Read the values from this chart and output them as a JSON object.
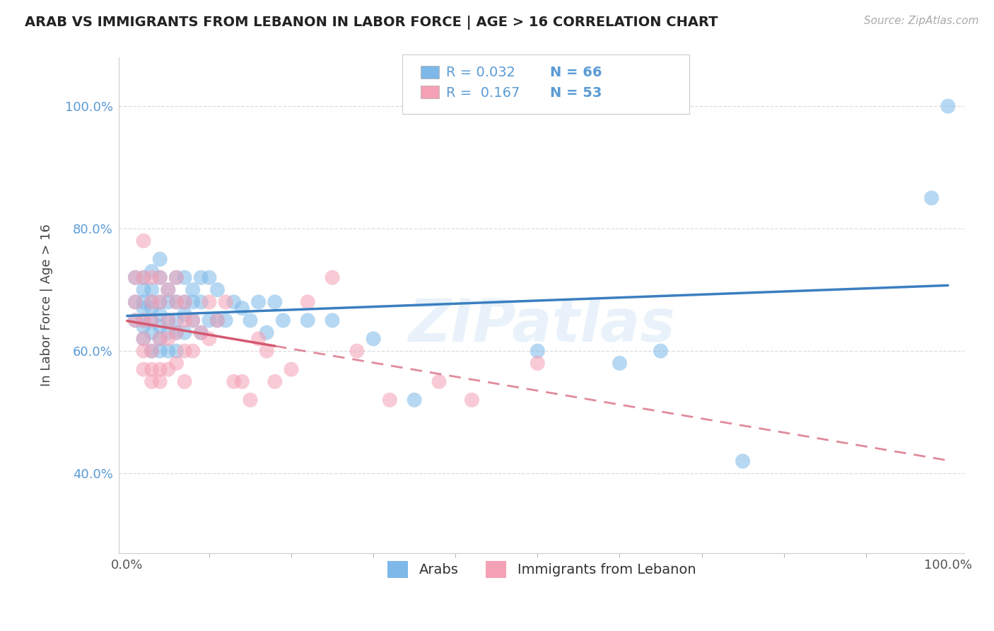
{
  "title": "ARAB VS IMMIGRANTS FROM LEBANON IN LABOR FORCE | AGE > 16 CORRELATION CHART",
  "source": "Source: ZipAtlas.com",
  "ylabel": "In Labor Force | Age > 16",
  "xlim": [
    -0.01,
    1.02
  ],
  "ylim": [
    0.27,
    1.08
  ],
  "xtick_positions": [
    0.0,
    1.0
  ],
  "xticklabels": [
    "0.0%",
    "100.0%"
  ],
  "ytick_positions": [
    0.4,
    0.6,
    0.8,
    1.0
  ],
  "yticklabels": [
    "40.0%",
    "60.0%",
    "80.0%",
    "100.0%"
  ],
  "R1": "0.032",
  "N1": "66",
  "R2": "0.167",
  "N2": "53",
  "watermark": "ZIPatlas",
  "blue_scatter": "#7db8e8",
  "pink_scatter": "#f4a0b5",
  "trend_blue": "#3a7fc1",
  "trend_pink": "#d45870",
  "grid_color": "#dddddd",
  "title_color": "#222222",
  "axis_label_color": "#5b9bd5",
  "source_color": "#aaaaaa",
  "arab_x": [
    0.01,
    0.01,
    0.01,
    0.02,
    0.02,
    0.02,
    0.02,
    0.02,
    0.02,
    0.02,
    0.03,
    0.03,
    0.03,
    0.03,
    0.03,
    0.03,
    0.03,
    0.04,
    0.04,
    0.04,
    0.04,
    0.04,
    0.04,
    0.04,
    0.05,
    0.05,
    0.05,
    0.05,
    0.05,
    0.06,
    0.06,
    0.06,
    0.06,
    0.06,
    0.07,
    0.07,
    0.07,
    0.07,
    0.08,
    0.08,
    0.08,
    0.09,
    0.09,
    0.09,
    0.1,
    0.1,
    0.11,
    0.11,
    0.12,
    0.13,
    0.14,
    0.15,
    0.16,
    0.17,
    0.18,
    0.19,
    0.22,
    0.25,
    0.3,
    0.35,
    0.5,
    0.6,
    0.65,
    0.75,
    0.98,
    1.0
  ],
  "arab_y": [
    0.68,
    0.65,
    0.72,
    0.72,
    0.68,
    0.65,
    0.62,
    0.7,
    0.67,
    0.64,
    0.73,
    0.7,
    0.68,
    0.65,
    0.63,
    0.6,
    0.67,
    0.75,
    0.72,
    0.68,
    0.66,
    0.64,
    0.6,
    0.62,
    0.7,
    0.68,
    0.65,
    0.63,
    0.6,
    0.72,
    0.68,
    0.65,
    0.63,
    0.6,
    0.72,
    0.68,
    0.66,
    0.63,
    0.7,
    0.68,
    0.65,
    0.72,
    0.68,
    0.63,
    0.72,
    0.65,
    0.7,
    0.65,
    0.65,
    0.68,
    0.67,
    0.65,
    0.68,
    0.63,
    0.68,
    0.65,
    0.65,
    0.65,
    0.62,
    0.52,
    0.6,
    0.58,
    0.6,
    0.42,
    0.85,
    1.0
  ],
  "leb_x": [
    0.01,
    0.01,
    0.01,
    0.02,
    0.02,
    0.02,
    0.02,
    0.02,
    0.02,
    0.03,
    0.03,
    0.03,
    0.03,
    0.03,
    0.03,
    0.04,
    0.04,
    0.04,
    0.04,
    0.04,
    0.05,
    0.05,
    0.05,
    0.05,
    0.06,
    0.06,
    0.06,
    0.06,
    0.07,
    0.07,
    0.07,
    0.07,
    0.08,
    0.08,
    0.09,
    0.1,
    0.1,
    0.11,
    0.12,
    0.13,
    0.14,
    0.15,
    0.16,
    0.17,
    0.18,
    0.2,
    0.22,
    0.25,
    0.28,
    0.32,
    0.38,
    0.42,
    0.5
  ],
  "leb_y": [
    0.68,
    0.65,
    0.72,
    0.78,
    0.72,
    0.65,
    0.6,
    0.57,
    0.62,
    0.72,
    0.68,
    0.65,
    0.6,
    0.57,
    0.55,
    0.72,
    0.68,
    0.62,
    0.57,
    0.55,
    0.7,
    0.65,
    0.62,
    0.57,
    0.72,
    0.68,
    0.63,
    0.58,
    0.68,
    0.65,
    0.6,
    0.55,
    0.65,
    0.6,
    0.63,
    0.68,
    0.62,
    0.65,
    0.68,
    0.55,
    0.55,
    0.52,
    0.62,
    0.6,
    0.55,
    0.57,
    0.68,
    0.72,
    0.6,
    0.52,
    0.55,
    0.52,
    0.58
  ],
  "trend_blue_x0": 0.0,
  "trend_blue_x1": 1.0,
  "trend_pink_dashed_x0": 0.18,
  "trend_pink_dashed_x1": 1.0
}
